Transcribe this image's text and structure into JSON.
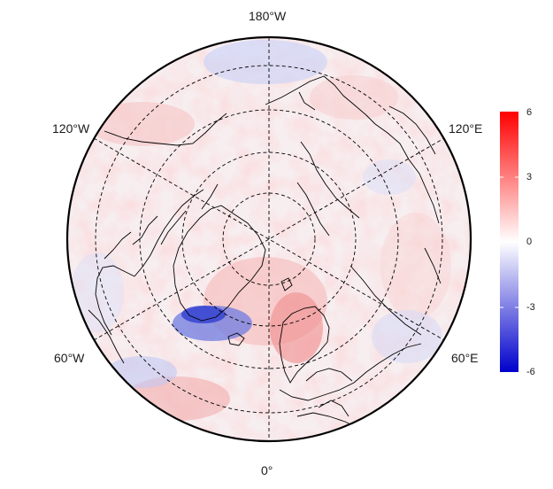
{
  "map": {
    "projection": "north-polar-stereographic",
    "longitude_labels": {
      "top": "180°W",
      "upper_left": "120°W",
      "upper_right": "120°E",
      "lower_left": "60°W",
      "lower_right": "60°E",
      "bottom": "0°"
    },
    "graticule": "dashed"
  },
  "colorbar": {
    "ticks": [
      "6",
      "3",
      "0",
      "-3",
      "-6"
    ],
    "min": -6,
    "max": 6,
    "colors": {
      "high": "#ff0000",
      "mid": "#ffffff",
      "low": "#0000cc"
    }
  }
}
